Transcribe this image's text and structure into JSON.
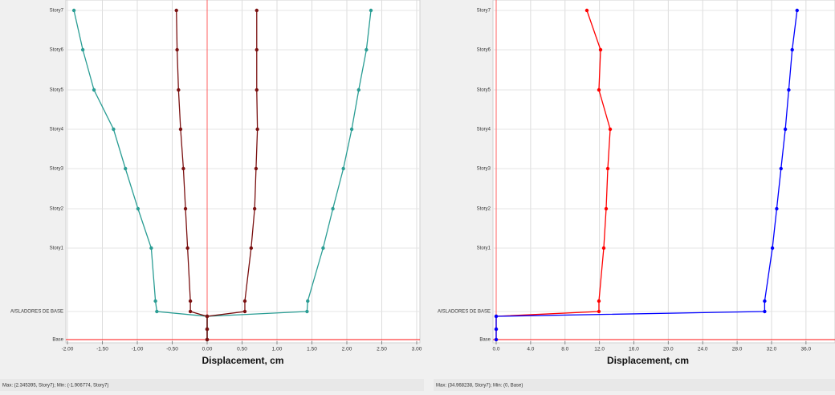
{
  "chart_data": [
    {
      "type": "line",
      "x_label": "Displacement, cm",
      "categories": [
        "Base",
        null,
        null,
        "AISLADORES DE BASE",
        null,
        "Story1",
        "Story2",
        "Story3",
        "Story4",
        "Story5",
        "Story6",
        "Story7"
      ],
      "xlim": [
        -2,
        3
      ],
      "xticks": [
        {
          "value": -2,
          "label": "-2.00"
        },
        {
          "value": -1.5,
          "label": "-1.50"
        },
        {
          "value": -1,
          "label": "-1.00"
        },
        {
          "value": -0.5,
          "label": "-0.50"
        },
        {
          "value": 0,
          "label": "0.00"
        },
        {
          "value": 0.5,
          "label": "0.50"
        },
        {
          "value": 1,
          "label": "1.00"
        },
        {
          "value": 1.5,
          "label": "1.50"
        },
        {
          "value": 2,
          "label": "2.00"
        },
        {
          "value": 2.5,
          "label": "2.50"
        },
        {
          "value": 3,
          "label": "3.00"
        }
      ],
      "grid": true,
      "series": [
        {
          "color": "#2a9d94",
          "values": [
            0,
            0,
            0,
            -0.72,
            -0.74,
            -0.8,
            -0.99,
            -1.17,
            -1.34,
            -1.62,
            -1.78,
            -1.907
          ]
        },
        {
          "color": "#2a9d94",
          "values": [
            0,
            0,
            0,
            1.43,
            1.44,
            1.66,
            1.8,
            1.95,
            2.07,
            2.17,
            2.28,
            2.345
          ]
        },
        {
          "color": "#7a1010",
          "values": [
            0,
            0,
            0,
            -0.24,
            -0.24,
            -0.28,
            -0.31,
            -0.34,
            -0.38,
            -0.41,
            -0.43,
            -0.44
          ]
        },
        {
          "color": "#7a1010",
          "values": [
            0,
            0,
            0,
            0.54,
            0.54,
            0.63,
            0.68,
            0.7,
            0.72,
            0.71,
            0.71,
            0.71
          ]
        }
      ],
      "footer": "Max: (2.345395, Story7);  Min: (-1.906774, Story7)"
    },
    {
      "type": "line",
      "x_label": "Displacement, cm",
      "categories": [
        "Base",
        null,
        null,
        "AISLADORES DE BASE",
        null,
        "Story1",
        "Story2",
        "Story3",
        "Story4",
        "Story5",
        "Story6",
        "Story7"
      ],
      "xlim": [
        0,
        39
      ],
      "xticks": [
        {
          "value": 0,
          "label": "0.0"
        },
        {
          "value": 4,
          "label": "4.0"
        },
        {
          "value": 8,
          "label": "8.0"
        },
        {
          "value": 12,
          "label": "12.0"
        },
        {
          "value": 16,
          "label": "16.0"
        },
        {
          "value": 20,
          "label": "20.0"
        },
        {
          "value": 24,
          "label": "24.0"
        },
        {
          "value": 28,
          "label": "28.0"
        },
        {
          "value": 32,
          "label": "32.0"
        },
        {
          "value": 36,
          "label": "36.0"
        }
      ],
      "grid": true,
      "series": [
        {
          "color": "#ff0000",
          "values": [
            0,
            0,
            0,
            11.94,
            11.94,
            12.5,
            12.78,
            12.97,
            13.25,
            11.94,
            12.13,
            10.54
          ]
        },
        {
          "color": "#0000ff",
          "values": [
            0,
            0,
            0,
            31.2,
            31.2,
            32.1,
            32.6,
            33.1,
            33.6,
            34.0,
            34.4,
            34.968
          ]
        }
      ],
      "footer": "Max: (34.968238, Story7);  Min: (0, Base)"
    }
  ]
}
